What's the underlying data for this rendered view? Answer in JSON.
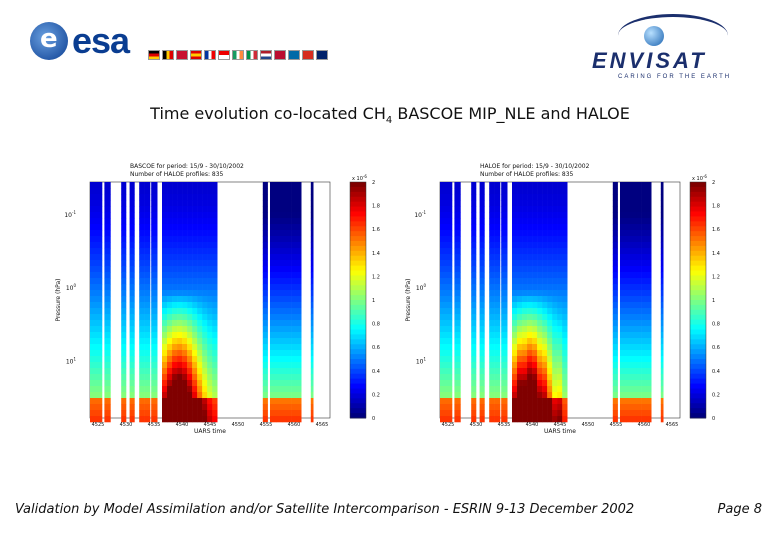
{
  "header": {
    "esa_logo_text": "esa",
    "envisat_logo_text": "ENVISAT",
    "envisat_tagline": "CARING FOR THE EARTH"
  },
  "slide": {
    "title_prefix": "Time evolution co-located CH",
    "title_subscript": "4",
    "title_suffix": " BASCOE MIP_NLE and HALOE"
  },
  "footer": {
    "left": "Validation by Model Assimilation and/or Satellite Intercomparison - ESRIN 9-13 December 2002",
    "right": "Page 8"
  },
  "colors": {
    "jet_scale": [
      "#00008f",
      "#0000ff",
      "#00ffff",
      "#ffff00",
      "#ff0000",
      "#800000"
    ]
  },
  "chart_data": [
    {
      "type": "heatmap",
      "title_line1": "BASCOE for period: 15/9 - 30/10/2002",
      "title_line2": "Number of HALOE profiles: 835",
      "xlabel": "UARS time",
      "ylabel": "Pressure (hPa)",
      "xticks": [
        "4525",
        "4530",
        "4535",
        "4540",
        "4545",
        "4550",
        "4555",
        "4560",
        "4565"
      ],
      "yticks": [
        "10^-1",
        "10^0",
        "10^1"
      ],
      "colorbar": {
        "exponent_label": "x 10^-6",
        "ticks": [
          "0",
          "0.2",
          "0.4",
          "0.6",
          "0.8",
          "1",
          "1.2",
          "1.4",
          "1.6",
          "1.8",
          "2"
        ],
        "range": [
          0,
          2
        ]
      }
    },
    {
      "type": "heatmap",
      "title_line1": "HALOE for period: 15/9 - 30/10/2002",
      "title_line2": "Number of HALOE profiles: 835",
      "xlabel": "UARS time",
      "ylabel": "Pressure (hPa)",
      "xticks": [
        "4525",
        "4530",
        "4535",
        "4540",
        "4545",
        "4550",
        "4555",
        "4560",
        "4565"
      ],
      "yticks": [
        "10^-1",
        "10^0",
        "10^1"
      ],
      "colorbar": {
        "exponent_label": "x 10^-6",
        "ticks": [
          "0",
          "0.2",
          "0.4",
          "0.6",
          "0.8",
          "1",
          "1.2",
          "1.4",
          "1.6",
          "1.8",
          "2"
        ],
        "range": [
          0,
          2
        ]
      }
    }
  ]
}
